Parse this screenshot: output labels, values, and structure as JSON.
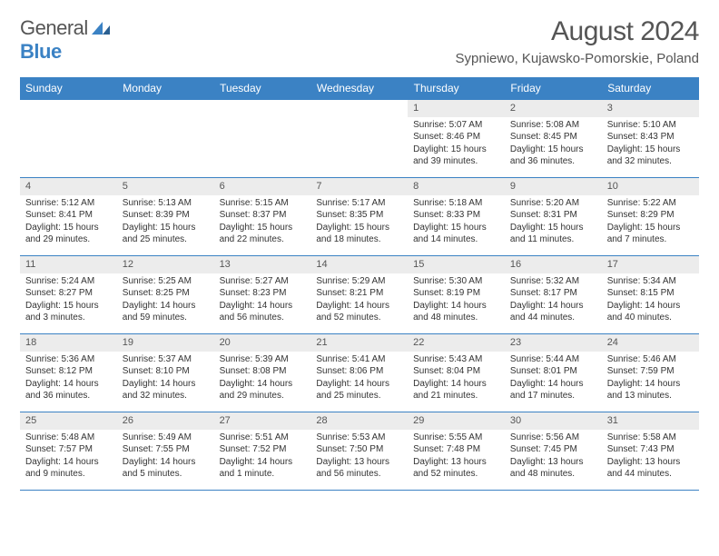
{
  "logo": {
    "word1": "General",
    "word2": "Blue"
  },
  "title": "August 2024",
  "location": "Sypniewo, Kujawsko-Pomorskie, Poland",
  "colors": {
    "brand": "#3b82c4",
    "headerText": "#555",
    "dayNumBg": "#ececec"
  },
  "dayHeaders": [
    "Sunday",
    "Monday",
    "Tuesday",
    "Wednesday",
    "Thursday",
    "Friday",
    "Saturday"
  ],
  "weeks": [
    [
      {
        "n": "",
        "sunrise": "",
        "sunset": "",
        "daylight": ""
      },
      {
        "n": "",
        "sunrise": "",
        "sunset": "",
        "daylight": ""
      },
      {
        "n": "",
        "sunrise": "",
        "sunset": "",
        "daylight": ""
      },
      {
        "n": "",
        "sunrise": "",
        "sunset": "",
        "daylight": ""
      },
      {
        "n": "1",
        "sunrise": "Sunrise: 5:07 AM",
        "sunset": "Sunset: 8:46 PM",
        "daylight": "Daylight: 15 hours and 39 minutes."
      },
      {
        "n": "2",
        "sunrise": "Sunrise: 5:08 AM",
        "sunset": "Sunset: 8:45 PM",
        "daylight": "Daylight: 15 hours and 36 minutes."
      },
      {
        "n": "3",
        "sunrise": "Sunrise: 5:10 AM",
        "sunset": "Sunset: 8:43 PM",
        "daylight": "Daylight: 15 hours and 32 minutes."
      }
    ],
    [
      {
        "n": "4",
        "sunrise": "Sunrise: 5:12 AM",
        "sunset": "Sunset: 8:41 PM",
        "daylight": "Daylight: 15 hours and 29 minutes."
      },
      {
        "n": "5",
        "sunrise": "Sunrise: 5:13 AM",
        "sunset": "Sunset: 8:39 PM",
        "daylight": "Daylight: 15 hours and 25 minutes."
      },
      {
        "n": "6",
        "sunrise": "Sunrise: 5:15 AM",
        "sunset": "Sunset: 8:37 PM",
        "daylight": "Daylight: 15 hours and 22 minutes."
      },
      {
        "n": "7",
        "sunrise": "Sunrise: 5:17 AM",
        "sunset": "Sunset: 8:35 PM",
        "daylight": "Daylight: 15 hours and 18 minutes."
      },
      {
        "n": "8",
        "sunrise": "Sunrise: 5:18 AM",
        "sunset": "Sunset: 8:33 PM",
        "daylight": "Daylight: 15 hours and 14 minutes."
      },
      {
        "n": "9",
        "sunrise": "Sunrise: 5:20 AM",
        "sunset": "Sunset: 8:31 PM",
        "daylight": "Daylight: 15 hours and 11 minutes."
      },
      {
        "n": "10",
        "sunrise": "Sunrise: 5:22 AM",
        "sunset": "Sunset: 8:29 PM",
        "daylight": "Daylight: 15 hours and 7 minutes."
      }
    ],
    [
      {
        "n": "11",
        "sunrise": "Sunrise: 5:24 AM",
        "sunset": "Sunset: 8:27 PM",
        "daylight": "Daylight: 15 hours and 3 minutes."
      },
      {
        "n": "12",
        "sunrise": "Sunrise: 5:25 AM",
        "sunset": "Sunset: 8:25 PM",
        "daylight": "Daylight: 14 hours and 59 minutes."
      },
      {
        "n": "13",
        "sunrise": "Sunrise: 5:27 AM",
        "sunset": "Sunset: 8:23 PM",
        "daylight": "Daylight: 14 hours and 56 minutes."
      },
      {
        "n": "14",
        "sunrise": "Sunrise: 5:29 AM",
        "sunset": "Sunset: 8:21 PM",
        "daylight": "Daylight: 14 hours and 52 minutes."
      },
      {
        "n": "15",
        "sunrise": "Sunrise: 5:30 AM",
        "sunset": "Sunset: 8:19 PM",
        "daylight": "Daylight: 14 hours and 48 minutes."
      },
      {
        "n": "16",
        "sunrise": "Sunrise: 5:32 AM",
        "sunset": "Sunset: 8:17 PM",
        "daylight": "Daylight: 14 hours and 44 minutes."
      },
      {
        "n": "17",
        "sunrise": "Sunrise: 5:34 AM",
        "sunset": "Sunset: 8:15 PM",
        "daylight": "Daylight: 14 hours and 40 minutes."
      }
    ],
    [
      {
        "n": "18",
        "sunrise": "Sunrise: 5:36 AM",
        "sunset": "Sunset: 8:12 PM",
        "daylight": "Daylight: 14 hours and 36 minutes."
      },
      {
        "n": "19",
        "sunrise": "Sunrise: 5:37 AM",
        "sunset": "Sunset: 8:10 PM",
        "daylight": "Daylight: 14 hours and 32 minutes."
      },
      {
        "n": "20",
        "sunrise": "Sunrise: 5:39 AM",
        "sunset": "Sunset: 8:08 PM",
        "daylight": "Daylight: 14 hours and 29 minutes."
      },
      {
        "n": "21",
        "sunrise": "Sunrise: 5:41 AM",
        "sunset": "Sunset: 8:06 PM",
        "daylight": "Daylight: 14 hours and 25 minutes."
      },
      {
        "n": "22",
        "sunrise": "Sunrise: 5:43 AM",
        "sunset": "Sunset: 8:04 PM",
        "daylight": "Daylight: 14 hours and 21 minutes."
      },
      {
        "n": "23",
        "sunrise": "Sunrise: 5:44 AM",
        "sunset": "Sunset: 8:01 PM",
        "daylight": "Daylight: 14 hours and 17 minutes."
      },
      {
        "n": "24",
        "sunrise": "Sunrise: 5:46 AM",
        "sunset": "Sunset: 7:59 PM",
        "daylight": "Daylight: 14 hours and 13 minutes."
      }
    ],
    [
      {
        "n": "25",
        "sunrise": "Sunrise: 5:48 AM",
        "sunset": "Sunset: 7:57 PM",
        "daylight": "Daylight: 14 hours and 9 minutes."
      },
      {
        "n": "26",
        "sunrise": "Sunrise: 5:49 AM",
        "sunset": "Sunset: 7:55 PM",
        "daylight": "Daylight: 14 hours and 5 minutes."
      },
      {
        "n": "27",
        "sunrise": "Sunrise: 5:51 AM",
        "sunset": "Sunset: 7:52 PM",
        "daylight": "Daylight: 14 hours and 1 minute."
      },
      {
        "n": "28",
        "sunrise": "Sunrise: 5:53 AM",
        "sunset": "Sunset: 7:50 PM",
        "daylight": "Daylight: 13 hours and 56 minutes."
      },
      {
        "n": "29",
        "sunrise": "Sunrise: 5:55 AM",
        "sunset": "Sunset: 7:48 PM",
        "daylight": "Daylight: 13 hours and 52 minutes."
      },
      {
        "n": "30",
        "sunrise": "Sunrise: 5:56 AM",
        "sunset": "Sunset: 7:45 PM",
        "daylight": "Daylight: 13 hours and 48 minutes."
      },
      {
        "n": "31",
        "sunrise": "Sunrise: 5:58 AM",
        "sunset": "Sunset: 7:43 PM",
        "daylight": "Daylight: 13 hours and 44 minutes."
      }
    ]
  ]
}
